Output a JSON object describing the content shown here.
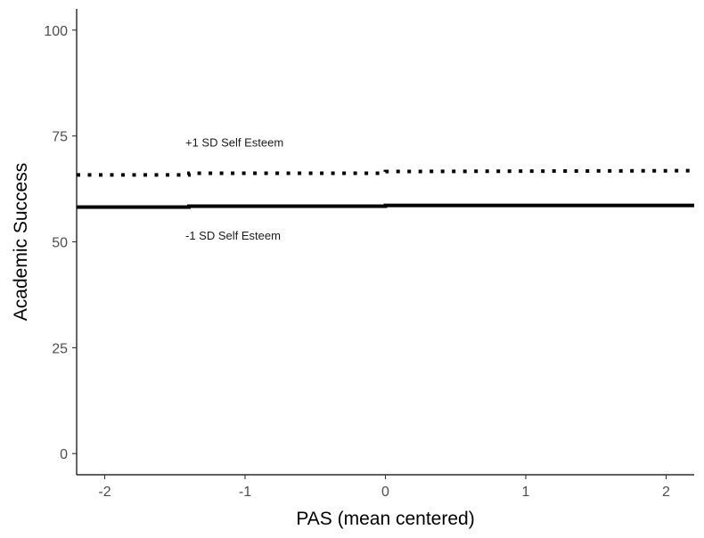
{
  "chart_data": {
    "type": "line",
    "title": "",
    "xlabel": "PAS (mean centered)",
    "ylabel": "Academic Success",
    "xlim": [
      -2.2,
      2.2
    ],
    "ylim": [
      -5,
      105
    ],
    "x_ticks": [
      -2,
      -1,
      0,
      1,
      2
    ],
    "y_ticks": [
      0,
      25,
      50,
      75,
      100
    ],
    "grid": false,
    "series": [
      {
        "x": [
          -2.2,
          -1.4,
          -1.4,
          0,
          0,
          2.2
        ],
        "y": [
          65.8,
          65.8,
          66.2,
          66.2,
          66.6,
          66.8
        ],
        "line_style": "dotted",
        "color": "#000000"
      },
      {
        "x": [
          -2.2,
          -1.4,
          -1.4,
          0,
          0,
          2.2
        ],
        "y": [
          58.2,
          58.2,
          58.4,
          58.4,
          58.6,
          58.6
        ],
        "line_style": "solid",
        "color": "#000000"
      }
    ],
    "annotations": [
      {
        "text": "+1 SD Self Esteem",
        "x": -1.4,
        "y": 72.5
      },
      {
        "text": "-1 SD Self Esteem",
        "x": -1.4,
        "y": 50.5
      }
    ]
  }
}
